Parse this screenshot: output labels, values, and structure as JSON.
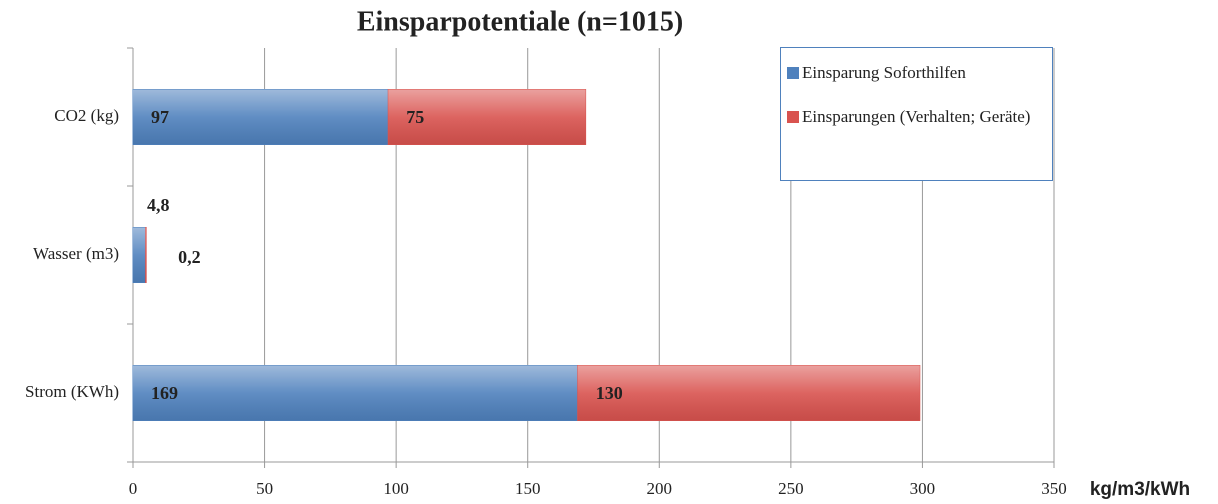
{
  "chart_data": {
    "type": "stacked-bar-horizontal",
    "title": "Einsparpotentiale (n=1015)",
    "categories": [
      "CO2 (kg)",
      "Wasser (m3)",
      "Strom (KWh)"
    ],
    "series": [
      {
        "name": "Einsparung Soforthilfen",
        "color": "#4f81bd",
        "values": [
          97,
          4.8,
          169
        ],
        "value_labels": [
          "97",
          "4,8",
          "169"
        ]
      },
      {
        "name": "Einsparungen (Verhalten; Geräte)",
        "color": "#d9534f",
        "values": [
          75,
          0.2,
          130
        ],
        "value_labels": [
          "75",
          "0,2",
          "130"
        ]
      }
    ],
    "xlim": [
      0,
      350
    ],
    "xticks": [
      0,
      50,
      100,
      150,
      200,
      250,
      300,
      350
    ],
    "xlabel": "kg/m3/kWh",
    "grid": true,
    "legend": "top-right"
  }
}
